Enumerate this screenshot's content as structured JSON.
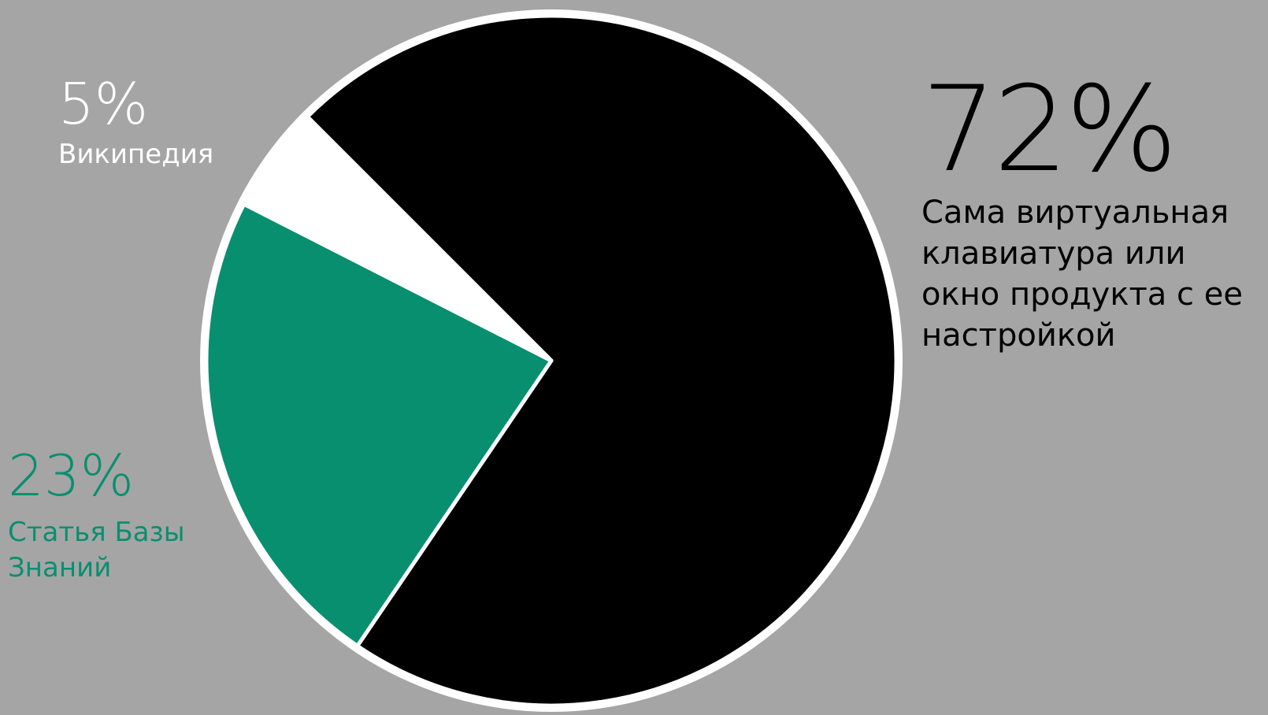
{
  "chart_data": {
    "type": "pie",
    "title": "",
    "start_angle_deg": -135,
    "slices": [
      {
        "label": "Сама виртуальная клавиатура или окно продукта с ее настройкой",
        "value": 72,
        "value_label": "72%",
        "color": "#000000"
      },
      {
        "label": "Статья Базы Знаний",
        "value": 23,
        "value_label": "23%",
        "color": "#088f70"
      },
      {
        "label": "Википедия",
        "value": 5,
        "value_label": "5%",
        "color": "#ffffff"
      }
    ],
    "legend": "none",
    "background": "#a5a5a5",
    "outline_color": "#ffffff"
  }
}
